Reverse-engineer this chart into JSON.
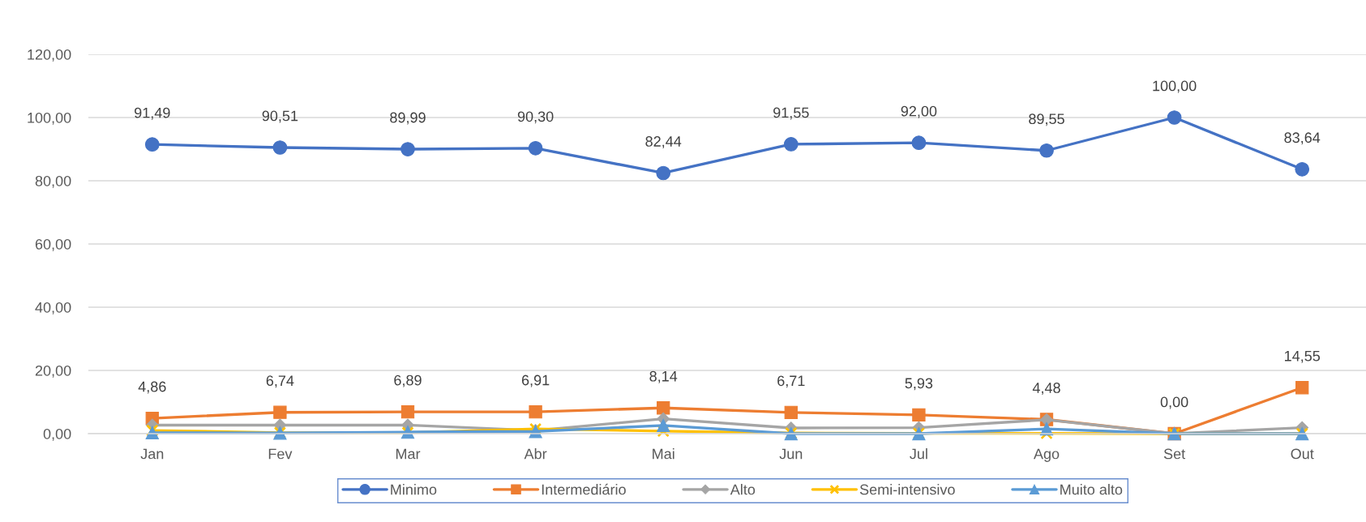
{
  "chart_data": {
    "type": "line",
    "categories": [
      "Jan",
      "Fev",
      "Mar",
      "Abr",
      "Mai",
      "Jun",
      "Jul",
      "Ago",
      "Set",
      "Out"
    ],
    "ylim": [
      0,
      120
    ],
    "yticks": [
      {
        "value": 0,
        "label": "0,00"
      },
      {
        "value": 20,
        "label": "20,00"
      },
      {
        "value": 40,
        "label": "40,00"
      },
      {
        "value": 60,
        "label": "60,00"
      },
      {
        "value": 80,
        "label": "80,00"
      },
      {
        "value": 100,
        "label": "100,00"
      },
      {
        "value": 120,
        "label": "120,00"
      }
    ],
    "grid": "y",
    "legend": "bottom",
    "line_style": "solid",
    "series": [
      {
        "name": "Minimo",
        "color": "#4472c4",
        "marker": "circle",
        "values": [
          91.49,
          90.51,
          89.99,
          90.3,
          82.44,
          91.55,
          92.0,
          89.55,
          100.0,
          83.64
        ],
        "value_labels": [
          "91,49",
          "90,51",
          "89,99",
          "90,30",
          "82,44",
          "91,55",
          "92,00",
          "89,55",
          "100,00",
          "83,64"
        ]
      },
      {
        "name": "Intermediário",
        "color": "#ed7d31",
        "marker": "square",
        "values": [
          4.86,
          6.74,
          6.89,
          6.91,
          8.14,
          6.71,
          5.93,
          4.48,
          0.0,
          14.55
        ],
        "value_labels": [
          "4,86",
          "6,74",
          "6,89",
          "6,91",
          "8,14",
          "6,71",
          "5,93",
          "4,48",
          "0,00",
          "14,55"
        ]
      },
      {
        "name": "Alto",
        "color": "#a5a5a5",
        "marker": "diamond",
        "values": [
          2.7,
          2.7,
          2.7,
          1.0,
          4.7,
          1.8,
          1.9,
          4.4,
          0.0,
          1.9
        ]
      },
      {
        "name": "Semi-intensivo",
        "color": "#ffc000",
        "marker": "cross",
        "values": [
          1.0,
          0.3,
          0.3,
          1.5,
          0.8,
          0.2,
          0.1,
          0.1,
          0.0,
          0.0
        ]
      },
      {
        "name": "Muito alto",
        "color": "#5b9bd5",
        "marker": "triangle",
        "values": [
          0.3,
          0.2,
          0.5,
          0.7,
          2.6,
          0.0,
          0.0,
          1.5,
          0.0,
          0.0
        ]
      }
    ]
  }
}
